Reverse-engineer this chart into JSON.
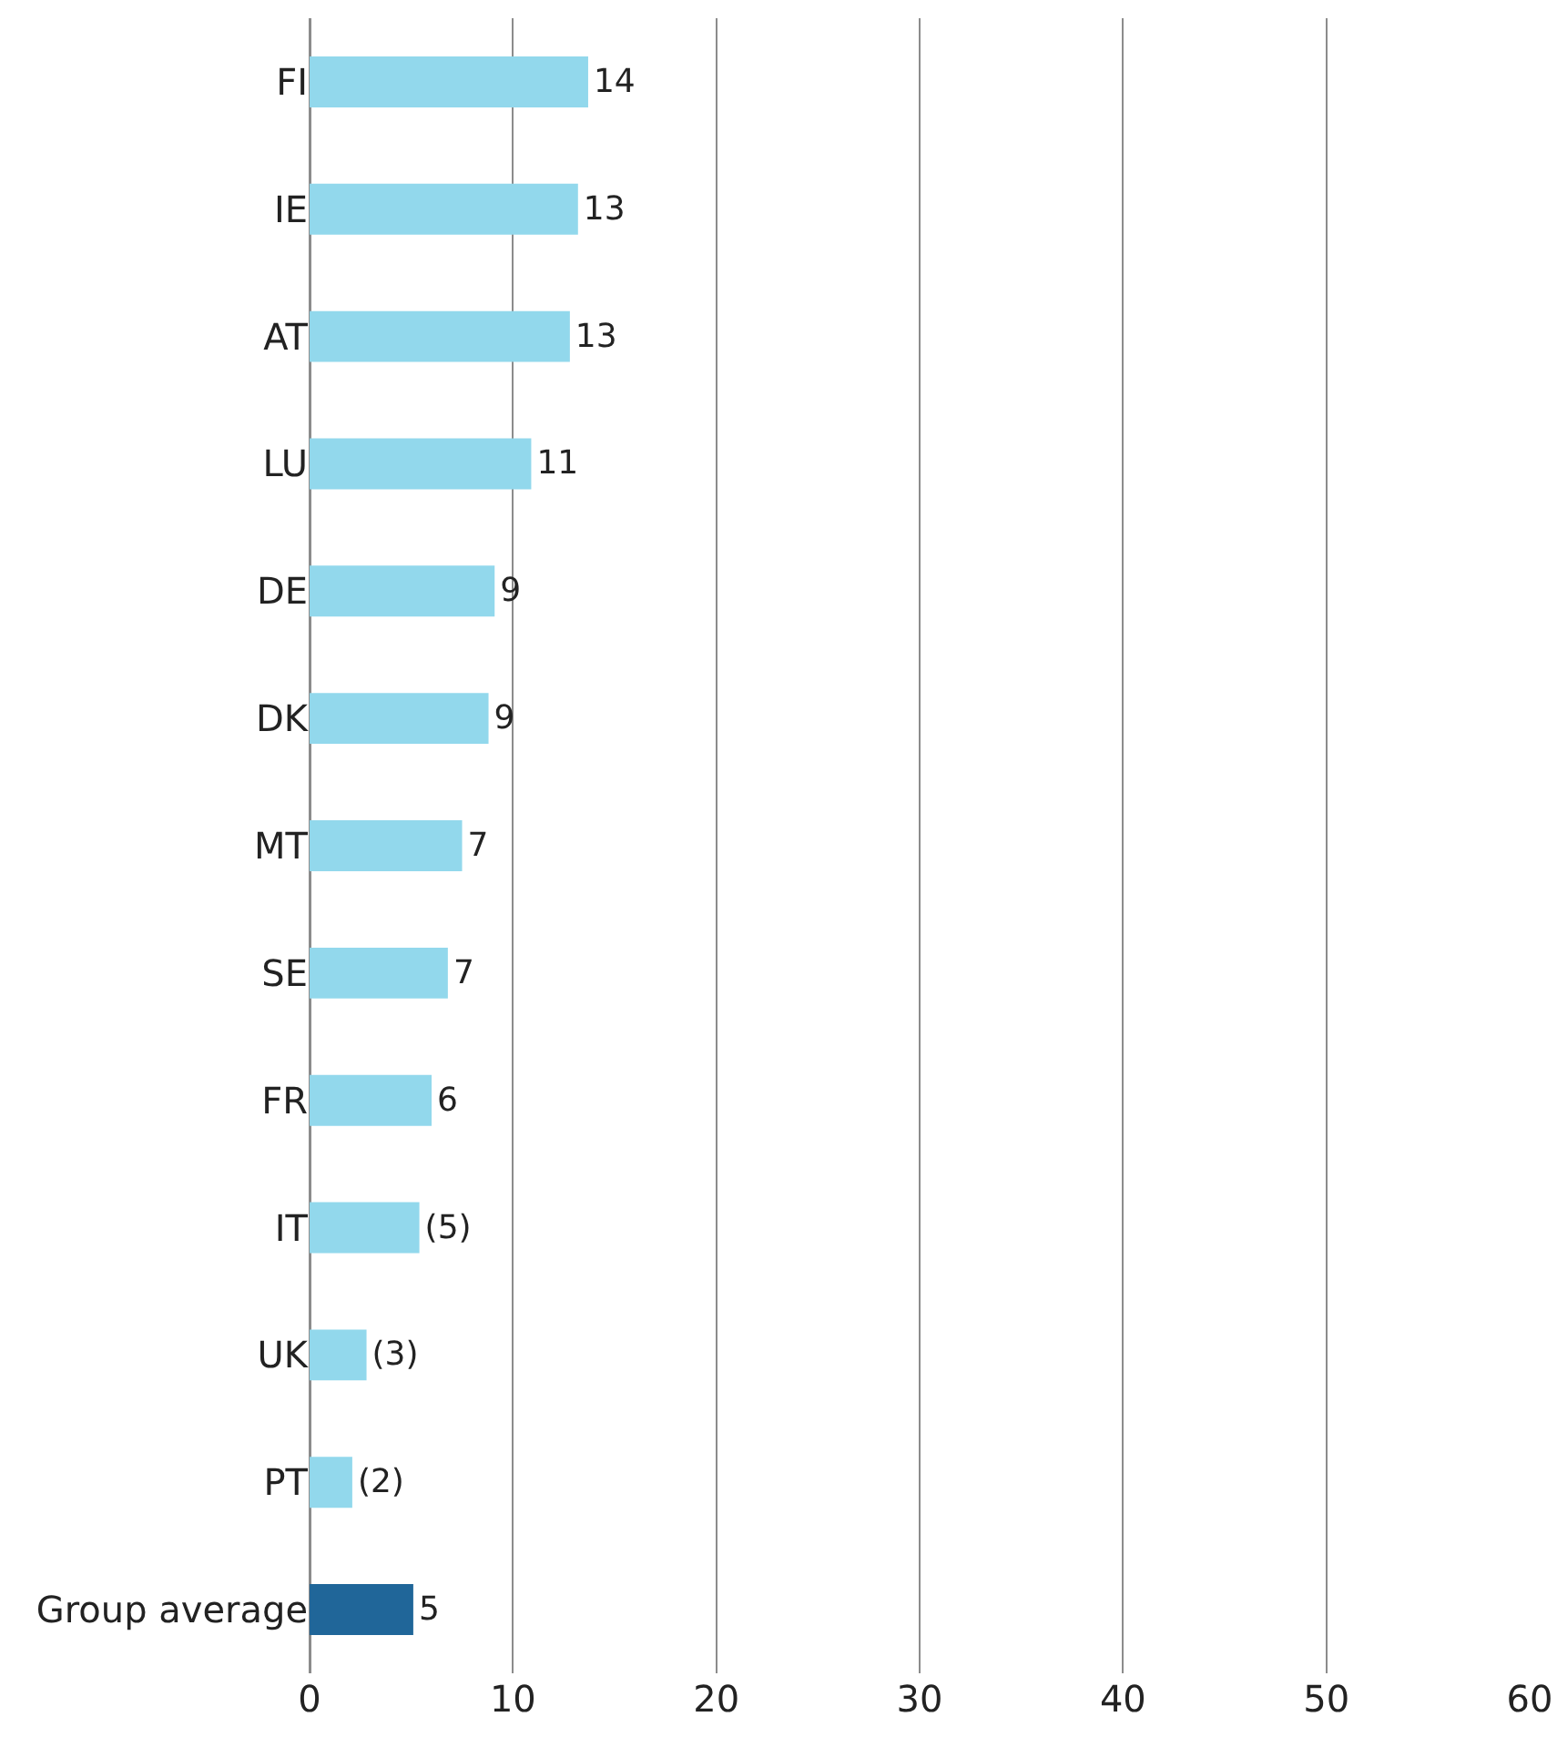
{
  "chart_data": {
    "type": "bar",
    "orientation": "horizontal",
    "categories": [
      "FI",
      "IE",
      "AT",
      "LU",
      "DE",
      "DK",
      "MT",
      "SE",
      "FR",
      "IT",
      "UK",
      "PT",
      "Group average"
    ],
    "values": [
      13.7,
      13.2,
      12.8,
      10.9,
      9.1,
      8.8,
      7.5,
      6.8,
      6.0,
      5.4,
      2.8,
      2.1,
      5.1
    ],
    "value_labels": [
      "14",
      "13",
      "13",
      "11",
      "9",
      "9",
      "7",
      "7",
      "6",
      "(5)",
      "(3)",
      "(2)",
      "5"
    ],
    "colors": [
      "#92d8ec",
      "#92d8ec",
      "#92d8ec",
      "#92d8ec",
      "#92d8ec",
      "#92d8ec",
      "#92d8ec",
      "#92d8ec",
      "#92d8ec",
      "#92d8ec",
      "#92d8ec",
      "#92d8ec",
      "#206699"
    ],
    "xlim": [
      0,
      60
    ],
    "xticks": [
      0,
      10,
      20,
      30,
      40,
      50,
      60
    ],
    "grid": "x",
    "legend": false
  }
}
